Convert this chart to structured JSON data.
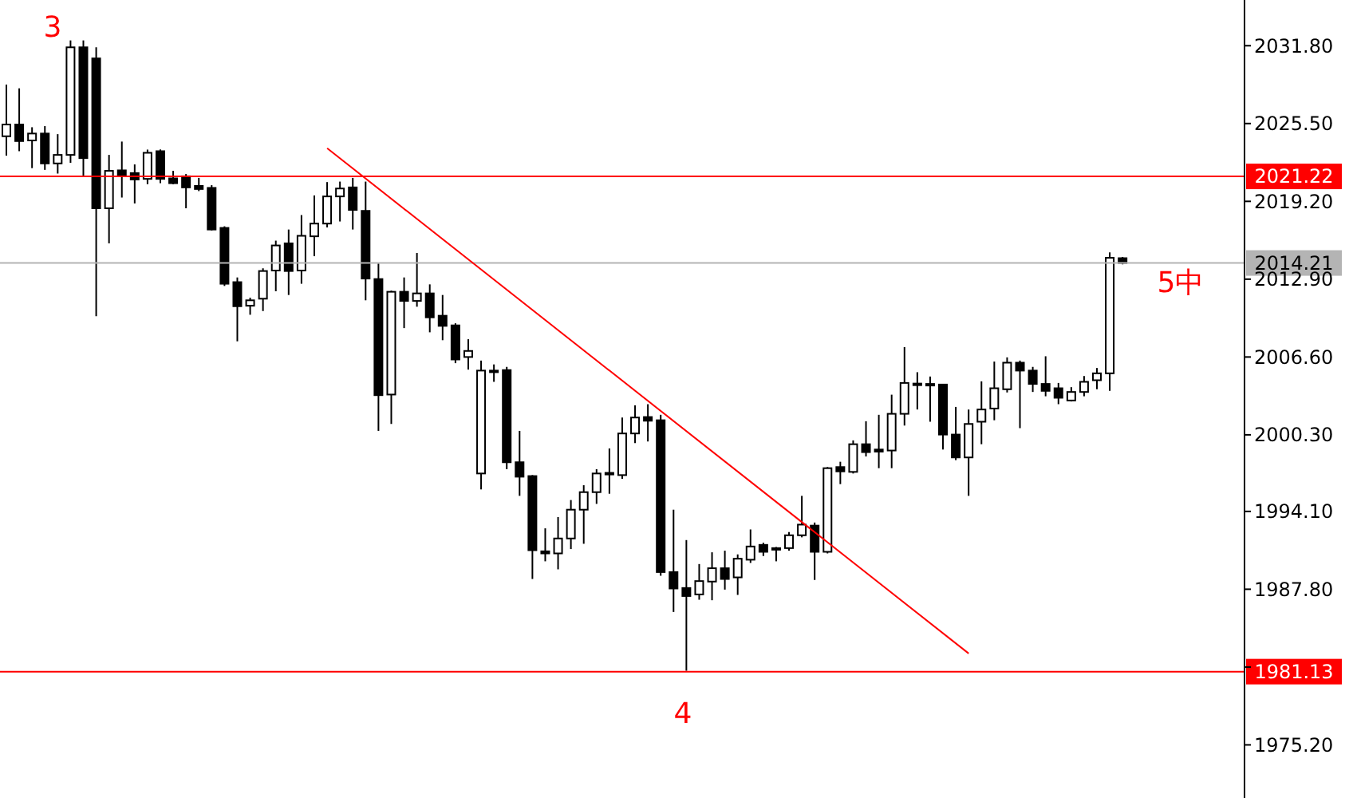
{
  "chart_data": {
    "type": "candlestick",
    "color": "#000000",
    "categories": [
      null,
      null,
      null,
      null,
      null,
      null,
      null,
      null,
      null,
      null,
      null,
      null,
      null,
      null,
      null,
      null,
      null,
      null,
      null,
      null,
      null,
      null,
      null,
      null,
      null,
      null,
      null,
      null,
      null,
      null,
      null,
      null,
      null,
      null,
      null,
      null,
      null,
      null,
      null,
      null,
      null,
      null,
      null,
      null,
      null,
      null,
      null,
      null,
      null,
      null,
      null,
      null,
      null,
      null,
      null,
      null,
      null,
      null,
      null,
      null,
      null,
      null,
      null,
      null,
      null,
      null,
      null,
      null,
      null,
      null,
      null,
      null,
      null,
      null,
      null,
      null,
      null,
      null,
      null,
      null,
      null,
      null,
      null,
      null,
      null,
      null,
      null,
      null,
      null,
      null,
      null,
      null,
      null,
      null,
      null,
      null,
      null
    ],
    "ohlc": [
      [
        2024.47,
        2028.66,
        2022.91,
        2025.42
      ],
      [
        2025.42,
        2028.35,
        2023.26,
        2024.08
      ],
      [
        2024.13,
        2025.2,
        2021.89,
        2024.69
      ],
      [
        2024.69,
        2025.29,
        2021.75,
        2022.27
      ],
      [
        2022.27,
        2024.64,
        2021.45,
        2022.96
      ],
      [
        2022.96,
        2032.23,
        2022.32,
        2031.67
      ],
      [
        2031.67,
        2032.23,
        2021.19,
        2022.7
      ],
      [
        2030.77,
        2031.67,
        2009.9,
        2018.64
      ],
      [
        2018.64,
        2022.96,
        2015.8,
        2021.67
      ],
      [
        2021.71,
        2024.04,
        2019.51,
        2021.32
      ],
      [
        2021.49,
        2022.19,
        2019.03,
        2020.97
      ],
      [
        2021.02,
        2023.39,
        2020.59,
        2023.13
      ],
      [
        2023.26,
        2023.4,
        2020.67,
        2021.02
      ],
      [
        2021.06,
        2021.67,
        2020.59,
        2020.67
      ],
      [
        2021.23,
        2021.41,
        2018.64,
        2020.33
      ],
      [
        2020.45,
        2021.1,
        2020.03,
        2020.2
      ],
      [
        2020.29,
        2020.51,
        2016.85,
        2016.92
      ],
      [
        2017.05,
        2017.18,
        2012.35,
        2012.53
      ],
      [
        2012.66,
        2013.04,
        2007.87,
        2010.71
      ],
      [
        2010.75,
        2011.4,
        2010.02,
        2011.19
      ],
      [
        2011.32,
        2013.78,
        2010.32,
        2013.56
      ],
      [
        2013.6,
        2016.02,
        2011.92,
        2015.63
      ],
      [
        2015.8,
        2016.92,
        2011.62,
        2013.56
      ],
      [
        2013.6,
        2018.09,
        2012.53,
        2016.41
      ],
      [
        2016.37,
        2019.68,
        2014.76,
        2017.4
      ],
      [
        2017.4,
        2020.76,
        2017.09,
        2019.6
      ],
      [
        2019.6,
        2020.8,
        2017.57,
        2020.24
      ],
      [
        2020.33,
        2021.1,
        2016.92,
        2018.51
      ],
      [
        2018.43,
        2020.8,
        2011.19,
        2012.95
      ],
      [
        2012.91,
        2014.17,
        2000.62,
        2003.51
      ],
      [
        2003.56,
        2011.97,
        2001.18,
        2011.88
      ],
      [
        2011.88,
        2013.04,
        2008.94,
        2011.14
      ],
      [
        2011.14,
        2015.02,
        2010.67,
        2011.75
      ],
      [
        2011.75,
        2012.48,
        2008.6,
        2009.81
      ],
      [
        2009.94,
        2011.62,
        2007.96,
        2009.12
      ],
      [
        2009.16,
        2009.33,
        2006.1,
        2006.4
      ],
      [
        2006.6,
        2008.04,
        2005.58,
        2007.09
      ],
      [
        1997.17,
        2006.31,
        1995.88,
        2005.5
      ],
      [
        2005.5,
        2006.0,
        2004.59,
        2005.4
      ],
      [
        2005.54,
        2005.8,
        1997.52,
        1998.08
      ],
      [
        1998.08,
        2000.62,
        1995.36,
        1996.91
      ],
      [
        1996.96,
        1997.04,
        1988.63,
        1990.96
      ],
      [
        1990.87,
        1992.73,
        1990.06,
        1990.7
      ],
      [
        1990.7,
        1993.64,
        1989.41,
        1991.91
      ],
      [
        1991.91,
        1995.02,
        1991.05,
        1994.24
      ],
      [
        1994.24,
        1996.22,
        1991.48,
        1995.66
      ],
      [
        1995.66,
        1997.52,
        1994.71,
        1997.17
      ],
      [
        1997.13,
        1999.2,
        1995.53,
        1997.22
      ],
      [
        1997.04,
        2001.7,
        1996.74,
        2000.41
      ],
      [
        2000.41,
        2002.69,
        1999.63,
        2001.7
      ],
      [
        2001.74,
        2002.78,
        1999.76,
        2001.44
      ],
      [
        2001.48,
        2001.92,
        1988.89,
        1989.19
      ],
      [
        1989.19,
        1994.24,
        1985.96,
        1987.86
      ],
      [
        1987.9,
        1991.78,
        1981.2,
        1987.25
      ],
      [
        1987.38,
        1989.84,
        1986.95,
        1988.46
      ],
      [
        1988.42,
        1990.79,
        1986.91,
        1989.5
      ],
      [
        1989.5,
        1990.92,
        1987.77,
        1988.63
      ],
      [
        1988.76,
        1990.62,
        1987.34,
        1990.27
      ],
      [
        1990.19,
        1992.64,
        1989.93,
        1991.26
      ],
      [
        1991.39,
        1991.57,
        1990.49,
        1990.83
      ],
      [
        1991.13,
        1991.22,
        1990.06,
        1991.1
      ],
      [
        1991.13,
        1992.43,
        1990.92,
        1992.17
      ],
      [
        1992.17,
        1995.36,
        1992.0,
        1993.03
      ],
      [
        1992.95,
        1993.2,
        1988.55,
        1990.83
      ],
      [
        1990.83,
        1997.69,
        1990.7,
        1997.6
      ],
      [
        1997.69,
        1998.12,
        1996.31,
        1997.34
      ],
      [
        1997.3,
        1999.85,
        1997.17,
        1999.54
      ],
      [
        1999.54,
        2001.4,
        1998.55,
        1998.9
      ],
      [
        1999.11,
        2001.92,
        1997.6,
        1998.94
      ],
      [
        1999.03,
        2003.55,
        1997.6,
        2002.0
      ],
      [
        2002.0,
        2007.4,
        2001.05,
        2004.5
      ],
      [
        2004.42,
        2005.37,
        2002.35,
        2004.45
      ],
      [
        2004.42,
        2005.02,
        2001.36,
        2004.33
      ],
      [
        2004.37,
        2004.42,
        1999.11,
        2000.32
      ],
      [
        2000.32,
        2002.56,
        1998.25,
        1998.47
      ],
      [
        1998.47,
        2002.35,
        1995.36,
        2001.18
      ],
      [
        2001.36,
        2004.63,
        1999.54,
        2002.35
      ],
      [
        2002.43,
        2006.23,
        2001.48,
        2004.07
      ],
      [
        2003.99,
        2006.57,
        2003.73,
        2006.14
      ],
      [
        2006.14,
        2006.31,
        2000.84,
        2005.5
      ],
      [
        2005.5,
        2005.8,
        2003.77,
        2004.42
      ],
      [
        2004.42,
        2006.66,
        2003.42,
        2003.86
      ],
      [
        2004.07,
        2004.5,
        2002.78,
        2003.3
      ],
      [
        2003.08,
        2004.16,
        2003.0,
        2003.77
      ],
      [
        2003.77,
        2005.06,
        2003.42,
        2004.59
      ],
      [
        2004.72,
        2005.71,
        2003.99,
        2005.28
      ],
      [
        2005.28,
        2015.07,
        2003.86,
        2014.63
      ],
      [
        2014.6,
        2014.7,
        2014.1,
        2014.21
      ],
      null,
      null,
      null,
      null,
      null,
      null,
      null,
      null,
      null
    ],
    "series": [
      {
        "type": "line",
        "color": "#ff0000",
        "values": [
          null,
          null,
          null,
          null,
          null,
          null,
          null,
          null,
          null,
          null,
          null,
          null,
          null,
          null,
          null,
          null,
          null,
          null,
          null,
          null,
          null,
          null,
          null,
          null,
          null,
          2023.5,
          null,
          null,
          null,
          null,
          null,
          null,
          null,
          null,
          null,
          null,
          null,
          null,
          null,
          null,
          null,
          null,
          null,
          null,
          null,
          null,
          null,
          null,
          null,
          null,
          null,
          null,
          null,
          null,
          null,
          null,
          null,
          null,
          null,
          null,
          null,
          null,
          null,
          null,
          null,
          null,
          null,
          null,
          null,
          null,
          null,
          null,
          null,
          null,
          null,
          1982.6,
          null,
          null,
          null,
          null,
          null,
          null,
          null,
          null,
          null,
          null,
          null,
          null,
          null,
          null,
          null,
          null,
          null,
          null,
          null,
          null,
          null
        ]
      }
    ],
    "ylim": [
      1970.9,
      2035.5
    ],
    "yticks": [
      {
        "value": 2031.8,
        "label": "2031.80"
      },
      {
        "value": 2025.5,
        "label": "2025.50"
      },
      {
        "value": 2019.2,
        "label": "2019.20"
      },
      {
        "value": 2012.9,
        "label": "2012.90"
      },
      {
        "value": 2006.6,
        "label": "2006.60"
      },
      {
        "value": 2000.3,
        "label": "2000.30"
      },
      {
        "value": 1994.1,
        "label": "1994.10"
      },
      {
        "value": 1987.8,
        "label": "1987.80"
      },
      {
        "value": 1981.5,
        "label": null
      },
      {
        "value": 1975.2,
        "label": "1975.20"
      }
    ],
    "ref_lines": [
      {
        "axis": "y",
        "value": 2021.22,
        "label": "2021.22",
        "color": "#ff0000"
      },
      {
        "axis": "y",
        "value": 2014.21,
        "label": "2014.21",
        "color": "#b4b4b4"
      },
      {
        "axis": "y",
        "value": 1981.13,
        "label": "1981.13",
        "color": "#ff0000"
      }
    ],
    "annotations": [
      "3",
      "4",
      "5中"
    ],
    "tick_labels": "y"
  }
}
